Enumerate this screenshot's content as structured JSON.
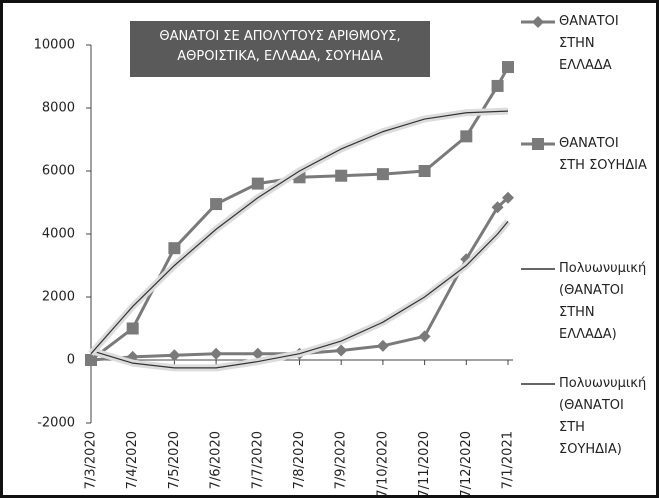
{
  "chart_data": {
    "type": "line",
    "title": "ΘΑΝΑΤΟΙ ΣΕ ΑΠΟΛΥΤΟΥΣ ΑΡΙΘΜΟΥΣ, ΑΘΡΟΙΣΤΙΚΑ, ΕΛΛΑΔΑ, ΣΟΥΗΔΙΑ",
    "x": [
      0,
      1,
      2,
      3,
      4,
      5,
      6,
      7,
      8,
      9,
      9.75,
      10
    ],
    "xlim": [
      0,
      10
    ],
    "xticks": [
      {
        "value": 0,
        "label": "7/3/2020"
      },
      {
        "value": 1,
        "label": "7/4/2020"
      },
      {
        "value": 2,
        "label": "7/5/2020"
      },
      {
        "value": 3,
        "label": "7/6/2020"
      },
      {
        "value": 4,
        "label": "7/7/2020"
      },
      {
        "value": 5,
        "label": "7/8/2020"
      },
      {
        "value": 6,
        "label": "7/9/2020"
      },
      {
        "value": 7,
        "label": "7/10/2020"
      },
      {
        "value": 8,
        "label": "7/11/2020"
      },
      {
        "value": 9,
        "label": "7/12/2020"
      },
      {
        "value": 10,
        "label": "7/1/2021"
      }
    ],
    "ylim": [
      -2000,
      10000
    ],
    "yticks": [
      -2000,
      0,
      2000,
      4000,
      6000,
      8000,
      10000
    ],
    "series": [
      {
        "name": "ΘΑΝΑΤΟΙ ΣΤΗΝ ΕΛΛΑΔΑ",
        "color": "#7a7a7a",
        "marker": "diamond",
        "values": [
          0,
          100,
          150,
          200,
          200,
          200,
          300,
          450,
          750,
          3200,
          4850,
          5150
        ]
      },
      {
        "name": "ΘΑΝΑΤΟΙ ΣΤΗ ΣΟΥΗΔΙΑ",
        "color": "#7a7a7a",
        "marker": "square",
        "values": [
          0,
          1000,
          3550,
          4950,
          5600,
          5800,
          5850,
          5900,
          6000,
          7100,
          8700,
          9300
        ]
      },
      {
        "name": "Πολυωνυμική (ΘΑΝΑΤΟΙ ΣΤΗΝ ΕΛΛΑΔΑ)",
        "color": "#333333",
        "marker": "none",
        "values": [
          300,
          -100,
          -250,
          -250,
          -50,
          200,
          600,
          1200,
          2000,
          3000,
          4000,
          4400
        ]
      },
      {
        "name": "Πολυωνυμική (ΘΑΝΑΤΟΙ ΣΤΗ ΣΟΥΗΔΙΑ)",
        "color": "#333333",
        "marker": "none",
        "values": [
          200,
          1700,
          3000,
          4150,
          5150,
          6000,
          6700,
          7250,
          7650,
          7850,
          7890,
          7900
        ]
      }
    ]
  }
}
